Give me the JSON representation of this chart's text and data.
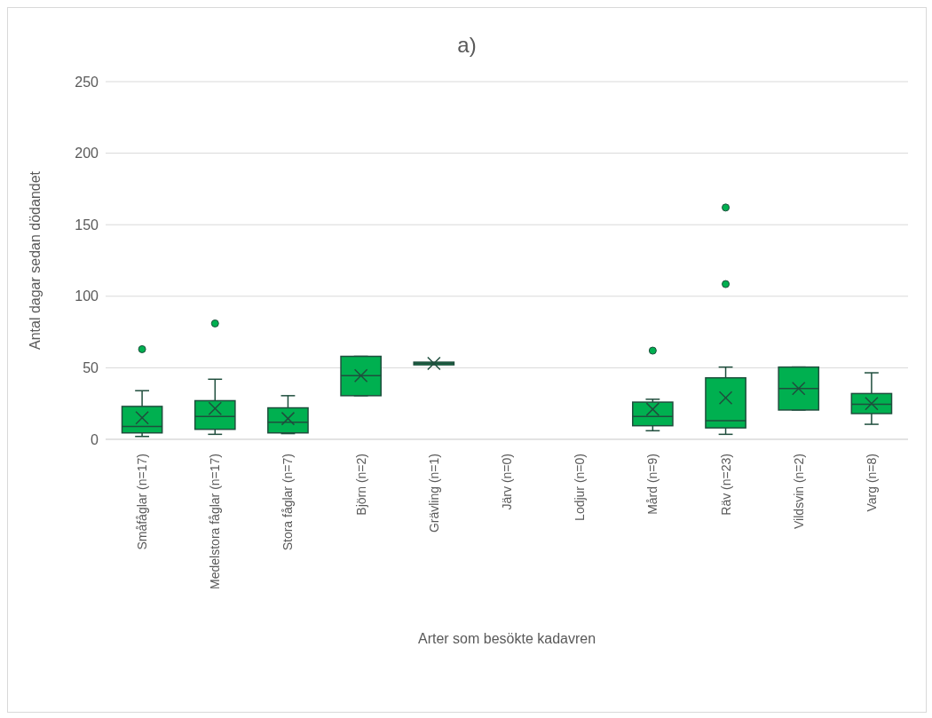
{
  "chart_data": {
    "type": "box",
    "title": "a)",
    "xlabel": "Arter som besökte kadavren",
    "ylabel": "Antal dagar sedan dödandet",
    "categories": [
      "Småfåglar (n=17)",
      "Medelstora fåglar (n=17)",
      "Stora fåglar (n=7)",
      "Björn (n=2)",
      "Grävling (n=1)",
      "Järv (n=0)",
      "Lodjur (n=0)",
      "Mård (n=9)",
      "Räv (n=23)",
      "Vildsvin (n=2)",
      "Varg (n=8)"
    ],
    "color": "#00b050",
    "boxes": [
      {
        "low": 2,
        "q1": 4.5,
        "median": 9,
        "q3": 23,
        "high": 34,
        "mean": 15,
        "outliers": [
          63
        ]
      },
      {
        "low": 3.5,
        "q1": 7,
        "median": 16,
        "q3": 27,
        "high": 42,
        "mean": 21.5,
        "outliers": [
          81
        ]
      },
      {
        "low": 4,
        "q1": 4.5,
        "median": 12,
        "q3": 22,
        "high": 30.5,
        "mean": 14.5
      },
      {
        "low": 30.5,
        "q1": 30.5,
        "median": 44.5,
        "q3": 58,
        "high": 58,
        "mean": 44.5
      },
      {
        "low": 53,
        "q1": 53,
        "median": 53,
        "q3": 53,
        "high": 53,
        "mean": 53
      },
      null,
      null,
      {
        "low": 6,
        "q1": 9.5,
        "median": 16,
        "q3": 26,
        "high": 28,
        "mean": 21,
        "outliers": [
          62
        ]
      },
      {
        "low": 3.5,
        "q1": 8,
        "median": 13,
        "q3": 43,
        "high": 50.5,
        "mean": 29,
        "outliers": [
          108.5,
          162
        ]
      },
      {
        "low": 20.5,
        "q1": 20.5,
        "median": 35.5,
        "q3": 50.5,
        "high": 50.5,
        "mean": 35.5
      },
      {
        "low": 10.5,
        "q1": 18,
        "median": 24.5,
        "q3": 32,
        "high": 46.5,
        "mean": 25
      }
    ],
    "ylim": [
      0,
      250
    ],
    "yticks": [
      0,
      50,
      100,
      150,
      200,
      250
    ],
    "grid": "y"
  }
}
